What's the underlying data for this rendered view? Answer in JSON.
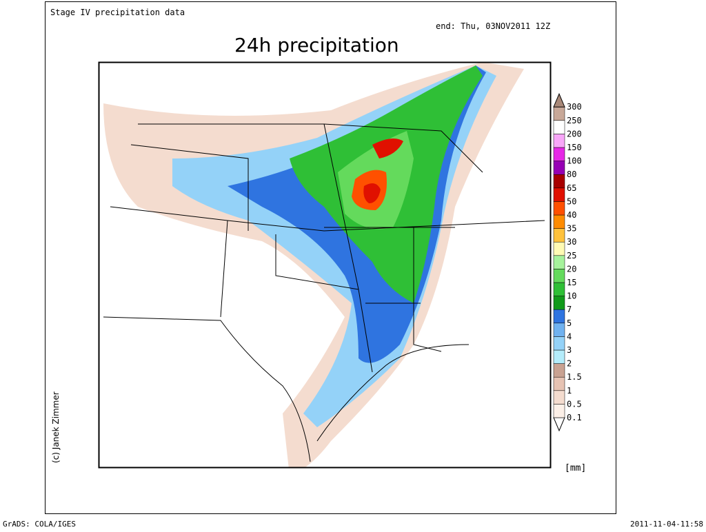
{
  "header": {
    "source": "Stage IV precipitation data",
    "end": "end: Thu, 03NOV2011 12Z",
    "title": "24h precipitation"
  },
  "legend": {
    "labels": [
      "0.1",
      "0.5",
      "1",
      "1.5",
      "2",
      "3",
      "4",
      "5",
      "7",
      "10",
      "15",
      "20",
      "25",
      "30",
      "35",
      "40",
      "50",
      "65",
      "80",
      "100",
      "150",
      "200",
      "250",
      "300"
    ],
    "colors": [
      "#ffffff",
      "#fcf0e8",
      "#f4dccf",
      "#e6c3b3",
      "#c9a292",
      "#b4ecfa",
      "#94d2f8",
      "#70b2f0",
      "#2f74e0",
      "#119a1a",
      "#2fbf36",
      "#64da5c",
      "#a6f29c",
      "#fffab4",
      "#ffc23c",
      "#ff8c00",
      "#ff5000",
      "#e01000",
      "#a80000",
      "#9600b4",
      "#e628e6",
      "#f8a6f8",
      "#ffffff",
      "#c8a898",
      "#a88878"
    ],
    "unit": "[mm]"
  },
  "credit": "(c) Janek Zimmer",
  "footer": {
    "left": "GrADS: COLA/IGES",
    "right": "2011-11-04-11:58"
  }
}
